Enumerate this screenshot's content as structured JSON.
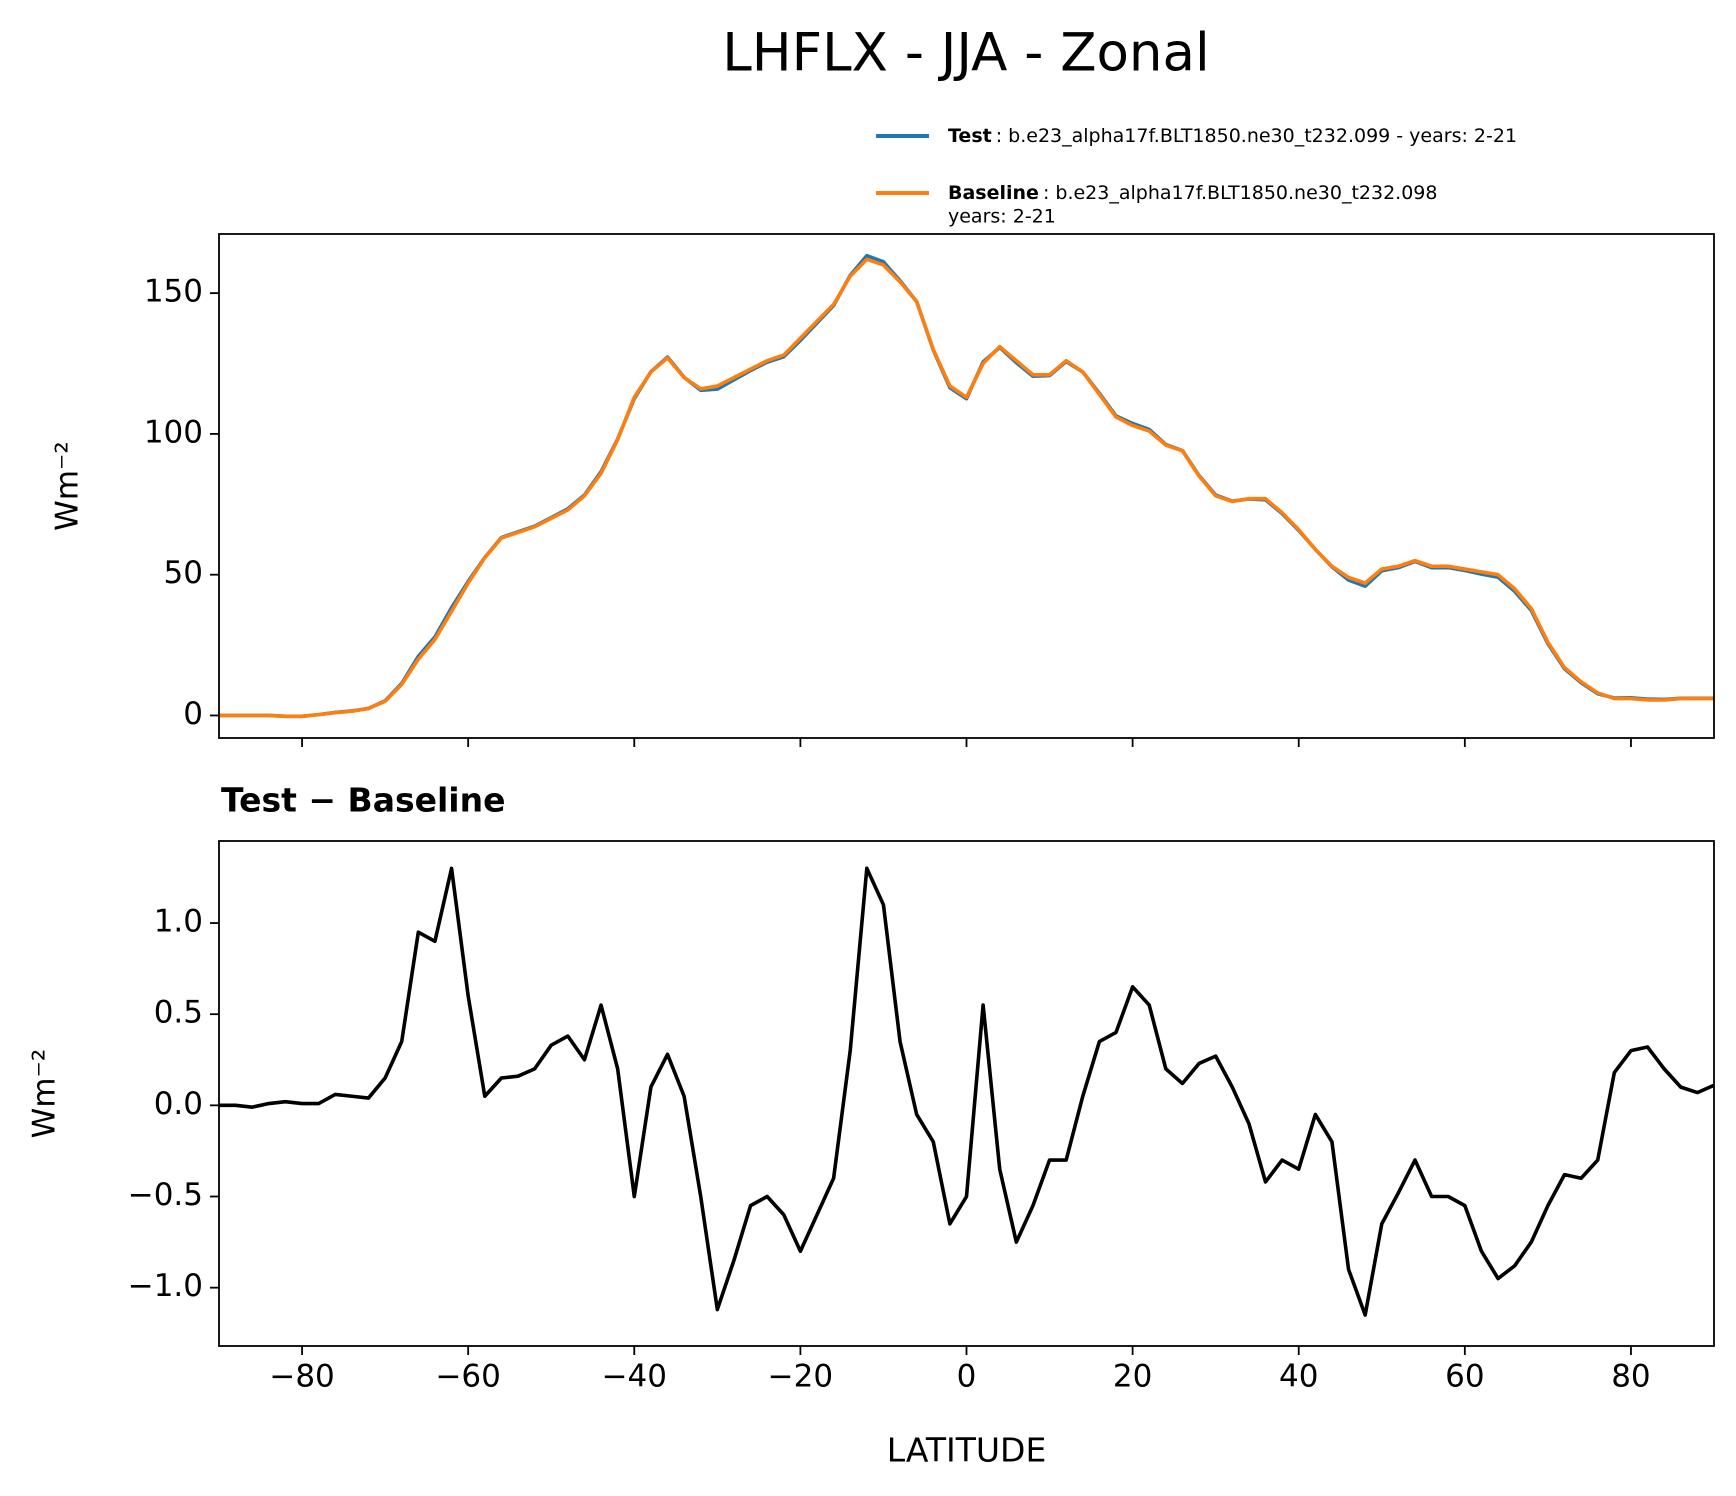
{
  "chart_data": [
    {
      "type": "line",
      "title": "LHFLX - JJA - Zonal",
      "ylabel": "Wm⁻²",
      "x": [
        -90,
        -88,
        -86,
        -84,
        -82,
        -80,
        -78,
        -76,
        -74,
        -72,
        -70,
        -68,
        -66,
        -64,
        -62,
        -60,
        -58,
        -56,
        -54,
        -52,
        -50,
        -48,
        -46,
        -44,
        -42,
        -40,
        -38,
        -36,
        -34,
        -32,
        -30,
        -28,
        -26,
        -24,
        -22,
        -20,
        -18,
        -16,
        -14,
        -12,
        -10,
        -8,
        -6,
        -4,
        -2,
        0,
        2,
        4,
        6,
        8,
        10,
        12,
        14,
        16,
        18,
        20,
        22,
        24,
        26,
        28,
        30,
        32,
        34,
        36,
        38,
        40,
        42,
        44,
        46,
        48,
        50,
        52,
        54,
        56,
        58,
        60,
        62,
        64,
        66,
        68,
        70,
        72,
        74,
        76,
        78,
        80,
        82,
        84,
        86,
        88,
        90
      ],
      "series": [
        {
          "name": "Test",
          "description": [
            ": b.e23_alpha17f.BLT1850.ne30_t232.099 - years: 2-21"
          ],
          "color": "#1f77b4",
          "values": [
            0,
            0,
            0,
            0,
            -0.3,
            -0.3,
            0.3,
            1.1,
            1.6,
            2.5,
            5.2,
            11.4,
            21,
            27.9,
            38.3,
            47.6,
            56.1,
            63.2,
            65.2,
            67.2,
            70.3,
            73.4,
            78.3,
            86.6,
            98.2,
            112.5,
            122.1,
            127.3,
            120.1,
            115.5,
            115.9,
            119.2,
            122.5,
            125.5,
            127.4,
            133.2,
            139.4,
            145.6,
            156.3,
            163.3,
            161.1,
            154.4,
            147,
            129.8,
            116.4,
            112.5,
            125.6,
            130.7,
            125.3,
            120.5,
            120.7,
            125.7,
            122,
            114.4,
            106.4,
            103.7,
            101.6,
            96.2,
            94.1,
            85.2,
            78.3,
            76.1,
            76.9,
            76.6,
            71.7,
            65.7,
            59,
            52.8,
            48.1,
            45.9,
            51.4,
            52.5,
            54.7,
            52.5,
            52.5,
            51.5,
            50.2,
            49.1,
            44.1,
            37.3,
            25.5,
            16.6,
            11.6,
            7.7,
            6.2,
            6.3,
            5.8,
            5.7,
            6.1,
            6.1,
            6.1
          ]
        },
        {
          "name": "Baseline",
          "description": [
            ": b.e23_alpha17f.BLT1850.ne30_t232.098",
            "years: 2-21"
          ],
          "color": "#ff7f0e",
          "values": [
            0,
            0,
            0,
            0,
            -0.3,
            -0.3,
            0.3,
            1,
            1.5,
            2.5,
            5,
            11,
            20,
            27,
            37,
            47,
            56,
            63,
            65,
            67,
            70,
            73,
            78,
            86,
            98,
            113,
            122,
            127,
            120,
            116,
            117,
            120,
            123,
            126,
            128,
            134,
            140,
            146,
            156,
            162,
            160,
            154,
            147,
            130,
            117,
            113,
            125,
            131,
            126,
            121,
            121,
            126,
            122,
            114,
            106,
            103,
            101,
            96,
            94,
            85,
            78,
            76,
            77,
            77,
            72,
            66,
            59,
            53,
            49,
            47,
            52,
            53,
            55,
            53,
            53,
            52,
            51,
            50,
            45,
            38,
            26,
            17,
            12,
            8,
            6,
            6,
            5.5,
            5.5,
            6,
            6,
            6
          ]
        }
      ],
      "xlim": [
        -90,
        90
      ],
      "xticks": [
        -80,
        -60,
        -40,
        -20,
        0,
        20,
        40,
        60,
        80
      ],
      "show_xtick_labels": false,
      "ylim": [
        -8,
        171
      ],
      "yticks": [
        0,
        50,
        100,
        150
      ]
    },
    {
      "type": "line",
      "title": "Test − Baseline",
      "ylabel": "Wm⁻²",
      "xlabel": "LATITUDE",
      "x": [
        -90,
        -88,
        -86,
        -84,
        -82,
        -80,
        -78,
        -76,
        -74,
        -72,
        -70,
        -68,
        -66,
        -64,
        -62,
        -60,
        -58,
        -56,
        -54,
        -52,
        -50,
        -48,
        -46,
        -44,
        -42,
        -40,
        -38,
        -36,
        -34,
        -32,
        -30,
        -28,
        -26,
        -24,
        -22,
        -20,
        -18,
        -16,
        -14,
        -12,
        -10,
        -8,
        -6,
        -4,
        -2,
        0,
        2,
        4,
        6,
        8,
        10,
        12,
        14,
        16,
        18,
        20,
        22,
        24,
        26,
        28,
        30,
        32,
        34,
        36,
        38,
        40,
        42,
        44,
        46,
        48,
        50,
        52,
        54,
        56,
        58,
        60,
        62,
        64,
        66,
        68,
        70,
        72,
        74,
        76,
        78,
        80,
        82,
        84,
        86,
        88,
        90
      ],
      "color": "#000000",
      "values": [
        0,
        0,
        -0.01,
        0.01,
        0.02,
        0.01,
        0.01,
        0.06,
        0.05,
        0.04,
        0.15,
        0.35,
        0.95,
        0.9,
        1.3,
        0.6,
        0.05,
        0.15,
        0.16,
        0.2,
        0.33,
        0.38,
        0.25,
        0.55,
        0.2,
        -0.5,
        0.1,
        0.28,
        0.05,
        -0.5,
        -1.12,
        -0.85,
        -0.55,
        -0.5,
        -0.6,
        -0.8,
        -0.6,
        -0.4,
        0.3,
        1.3,
        1.1,
        0.35,
        -0.05,
        -0.2,
        -0.65,
        -0.5,
        0.55,
        -0.35,
        -0.75,
        -0.55,
        -0.3,
        -0.3,
        0.05,
        0.35,
        0.4,
        0.65,
        0.55,
        0.2,
        0.12,
        0.23,
        0.27,
        0.1,
        -0.1,
        -0.42,
        -0.3,
        -0.35,
        -0.05,
        -0.2,
        -0.9,
        -1.15,
        -0.65,
        -0.48,
        -0.3,
        -0.5,
        -0.5,
        -0.55,
        -0.8,
        -0.95,
        -0.88,
        -0.75,
        -0.55,
        -0.38,
        -0.4,
        -0.3,
        0.18,
        0.3,
        0.32,
        0.2,
        0.1,
        0.07,
        0.11
      ],
      "xlim": [
        -90,
        90
      ],
      "xticks": [
        {
          "value": -80,
          "label": "−80"
        },
        {
          "value": -60,
          "label": "−60"
        },
        {
          "value": -40,
          "label": "−40"
        },
        {
          "value": -20,
          "label": "−20"
        },
        0,
        20,
        40,
        60,
        80
      ],
      "ylim": [
        -1.32,
        1.45
      ],
      "yticks": [
        {
          "value": -1,
          "label": "−1.0"
        },
        {
          "value": -0.5,
          "label": "−0.5"
        },
        {
          "value": 0,
          "label": "0.0"
        },
        0.5,
        {
          "value": 1,
          "label": "1.0"
        }
      ]
    }
  ]
}
